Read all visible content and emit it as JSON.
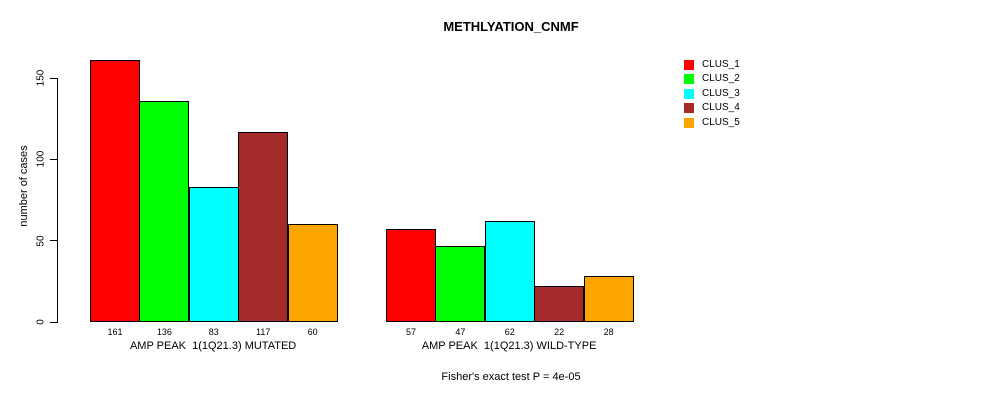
{
  "title": "METHLYATION_CNMF",
  "y_axis_label": "number of cases",
  "footer": "Fisher's exact test P = 4e-05",
  "chart_data": {
    "type": "bar",
    "title": "METHLYATION_CNMF",
    "xlabel": "",
    "ylabel": "number of cases",
    "ylim": [
      0,
      150
    ],
    "yticks": [
      0,
      50,
      100,
      150
    ],
    "grid": false,
    "legend_position": "right",
    "series": [
      {
        "name": "CLUS_1",
        "color": "#FF0000"
      },
      {
        "name": "CLUS_2",
        "color": "#00FF00"
      },
      {
        "name": "CLUS_3",
        "color": "#00FFFF"
      },
      {
        "name": "CLUS_4",
        "color": "#A52A2A"
      },
      {
        "name": "CLUS_5",
        "color": "#FFA500"
      }
    ],
    "groups": [
      {
        "label": "AMP PEAK  1(1Q21.3) MUTATED",
        "values": [
          161,
          136,
          83,
          117,
          60
        ]
      },
      {
        "label": "AMP PEAK  1(1Q21.3) WILD-TYPE",
        "values": [
          57,
          47,
          62,
          22,
          28
        ]
      }
    ],
    "annotation": "Fisher's exact test P = 4e-05"
  }
}
